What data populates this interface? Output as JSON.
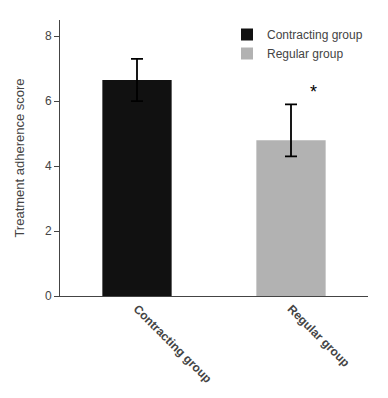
{
  "chart_data": {
    "type": "bar",
    "categories": [
      "Contracting group",
      "Regular group"
    ],
    "values": [
      6.65,
      4.8
    ],
    "errors_upper": [
      0.65,
      1.1
    ],
    "errors_lower": [
      0.65,
      0.5
    ],
    "colors": [
      "#111111",
      "#b2b2b2"
    ],
    "ylabel": "Treatment adherence score",
    "ylim": [
      0,
      8.5
    ],
    "yticks": [
      0,
      2,
      4,
      6,
      8
    ],
    "grid": false,
    "legend": "upper right",
    "annotations": [
      {
        "text": "*",
        "category": "Regular group"
      }
    ]
  }
}
